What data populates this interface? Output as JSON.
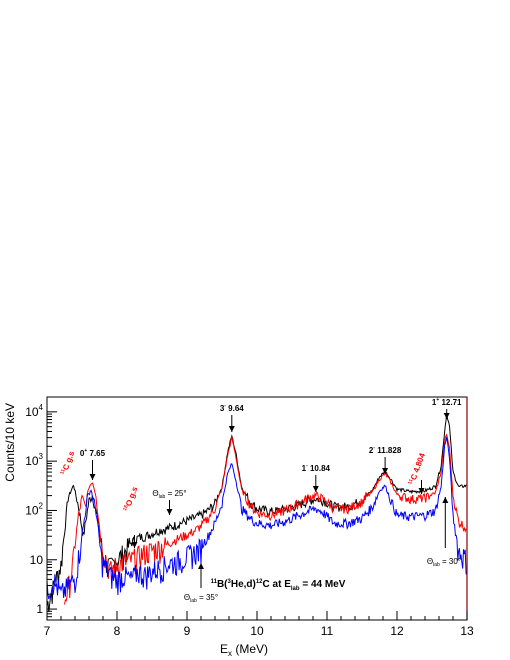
{
  "chart_data": {
    "type": "line",
    "title": "",
    "xlabel": "Ex (MeV)",
    "ylabel": "Counts/10 keV",
    "xlim": [
      7,
      13
    ],
    "ylim": [
      0.6,
      20000
    ],
    "yscale": "log",
    "x_ticks": [
      "7",
      "8",
      "9",
      "10",
      "11",
      "12",
      "13"
    ],
    "y_ticks": [
      "1",
      "10",
      "10^2",
      "10^3",
      "10^4"
    ],
    "series": [
      {
        "color": "#000000",
        "points": [
          [
            7.0,
            1.2
          ],
          [
            7.1,
            3.0
          ],
          [
            7.2,
            8
          ],
          [
            7.3,
            180
          ],
          [
            7.38,
            330
          ],
          [
            7.45,
            120
          ],
          [
            7.52,
            30
          ],
          [
            7.6,
            160
          ],
          [
            7.65,
            200
          ],
          [
            7.72,
            70
          ],
          [
            7.8,
            12
          ],
          [
            7.9,
            7
          ],
          [
            8.0,
            10
          ],
          [
            8.1,
            14
          ],
          [
            8.2,
            22
          ],
          [
            8.3,
            28
          ],
          [
            8.4,
            30
          ],
          [
            8.5,
            34
          ],
          [
            8.6,
            40
          ],
          [
            8.7,
            42
          ],
          [
            8.8,
            48
          ],
          [
            8.9,
            55
          ],
          [
            9.0,
            62
          ],
          [
            9.1,
            70
          ],
          [
            9.2,
            80
          ],
          [
            9.3,
            100
          ],
          [
            9.4,
            140
          ],
          [
            9.5,
            300
          ],
          [
            9.58,
            1500
          ],
          [
            9.64,
            3300
          ],
          [
            9.7,
            1400
          ],
          [
            9.78,
            300
          ],
          [
            9.9,
            150
          ],
          [
            10.0,
            110
          ],
          [
            10.2,
            95
          ],
          [
            10.4,
            105
          ],
          [
            10.6,
            130
          ],
          [
            10.75,
            160
          ],
          [
            10.84,
            175
          ],
          [
            10.95,
            160
          ],
          [
            11.1,
            120
          ],
          [
            11.3,
            120
          ],
          [
            11.5,
            160
          ],
          [
            11.65,
            260
          ],
          [
            11.75,
            480
          ],
          [
            11.83,
            620
          ],
          [
            11.9,
            460
          ],
          [
            12.0,
            270
          ],
          [
            12.2,
            240
          ],
          [
            12.4,
            250
          ],
          [
            12.55,
            310
          ],
          [
            12.63,
            800
          ],
          [
            12.68,
            4000
          ],
          [
            12.71,
            9500
          ],
          [
            12.75,
            5000
          ],
          [
            12.8,
            600
          ],
          [
            12.88,
            300
          ],
          [
            13.0,
            320
          ]
        ]
      },
      {
        "color": "#ff0000",
        "points": [
          [
            7.25,
            1.5
          ],
          [
            7.35,
            5
          ],
          [
            7.45,
            80
          ],
          [
            7.5,
            180
          ],
          [
            7.55,
            120
          ],
          [
            7.6,
            300
          ],
          [
            7.65,
            380
          ],
          [
            7.7,
            200
          ],
          [
            7.78,
            20
          ],
          [
            7.9,
            6
          ],
          [
            8.0,
            8
          ],
          [
            8.1,
            9
          ],
          [
            8.2,
            10
          ],
          [
            8.3,
            12
          ],
          [
            8.4,
            14
          ],
          [
            8.5,
            16
          ],
          [
            8.6,
            18
          ],
          [
            8.7,
            20
          ],
          [
            8.8,
            24
          ],
          [
            8.9,
            28
          ],
          [
            9.0,
            32
          ],
          [
            9.1,
            38
          ],
          [
            9.2,
            48
          ],
          [
            9.3,
            70
          ],
          [
            9.4,
            110
          ],
          [
            9.5,
            280
          ],
          [
            9.58,
            1300
          ],
          [
            9.64,
            3000
          ],
          [
            9.7,
            1200
          ],
          [
            9.78,
            260
          ],
          [
            9.9,
            130
          ],
          [
            10.0,
            90
          ],
          [
            10.2,
            80
          ],
          [
            10.4,
            100
          ],
          [
            10.6,
            140
          ],
          [
            10.75,
            190
          ],
          [
            10.84,
            200
          ],
          [
            10.95,
            170
          ],
          [
            11.1,
            110
          ],
          [
            11.3,
            110
          ],
          [
            11.5,
            150
          ],
          [
            11.65,
            240
          ],
          [
            11.75,
            430
          ],
          [
            11.83,
            560
          ],
          [
            11.9,
            400
          ],
          [
            12.0,
            210
          ],
          [
            12.2,
            170
          ],
          [
            12.4,
            180
          ],
          [
            12.55,
            230
          ],
          [
            12.63,
            600
          ],
          [
            12.68,
            2500
          ],
          [
            12.71,
            3500
          ],
          [
            12.75,
            1800
          ],
          [
            12.8,
            200
          ],
          [
            12.88,
            60
          ],
          [
            12.95,
            50
          ],
          [
            13.0,
            40
          ]
        ]
      },
      {
        "color": "#0000ff",
        "points": [
          [
            7.0,
            2.5
          ],
          [
            7.1,
            4
          ],
          [
            7.2,
            2
          ],
          [
            7.3,
            3
          ],
          [
            7.4,
            4
          ],
          [
            7.5,
            30
          ],
          [
            7.58,
            200
          ],
          [
            7.63,
            260
          ],
          [
            7.7,
            100
          ],
          [
            7.78,
            10
          ],
          [
            7.9,
            5
          ],
          [
            8.0,
            4
          ],
          [
            8.1,
            5
          ],
          [
            8.2,
            4
          ],
          [
            8.3,
            6
          ],
          [
            8.4,
            5
          ],
          [
            8.5,
            6
          ],
          [
            8.6,
            7
          ],
          [
            8.7,
            8
          ],
          [
            8.8,
            9
          ],
          [
            8.9,
            10
          ],
          [
            9.0,
            12
          ],
          [
            9.1,
            14
          ],
          [
            9.2,
            18
          ],
          [
            9.3,
            30
          ],
          [
            9.4,
            55
          ],
          [
            9.5,
            140
          ],
          [
            9.58,
            550
          ],
          [
            9.64,
            900
          ],
          [
            9.7,
            400
          ],
          [
            9.78,
            110
          ],
          [
            9.9,
            70
          ],
          [
            10.0,
            55
          ],
          [
            10.2,
            50
          ],
          [
            10.4,
            60
          ],
          [
            10.6,
            80
          ],
          [
            10.75,
            100
          ],
          [
            10.84,
            110
          ],
          [
            10.95,
            90
          ],
          [
            11.1,
            55
          ],
          [
            11.3,
            55
          ],
          [
            11.5,
            70
          ],
          [
            11.65,
            120
          ],
          [
            11.75,
            250
          ],
          [
            11.83,
            320
          ],
          [
            11.9,
            180
          ],
          [
            12.0,
            80
          ],
          [
            12.2,
            75
          ],
          [
            12.4,
            80
          ],
          [
            12.55,
            100
          ],
          [
            12.63,
            300
          ],
          [
            12.68,
            2000
          ],
          [
            12.71,
            3000
          ],
          [
            12.75,
            1200
          ],
          [
            12.8,
            80
          ],
          [
            12.88,
            15
          ],
          [
            12.95,
            12
          ],
          [
            13.0,
            10
          ]
        ]
      }
    ],
    "annotations": {
      "peak_0plus": "0+ 7.65",
      "peak_3minus": "3- 9.64",
      "peak_1minus": "1- 10.84",
      "peak_2minus": "2- 11.828",
      "peak_1plus": "1+ 12.71",
      "c11_gs": "11C g.s",
      "o15_gs": "15O g.s",
      "c11_4804": "11C 4.804",
      "theta25": "Θlab = 25°",
      "theta35": "Θlab = 35°",
      "theta30": "Θlab = 30°",
      "reaction": "11B(3He,d)12C  at Elab = 44 MeV"
    },
    "annotation_colors": {
      "black": "#000000",
      "red": "#ff0000"
    }
  }
}
